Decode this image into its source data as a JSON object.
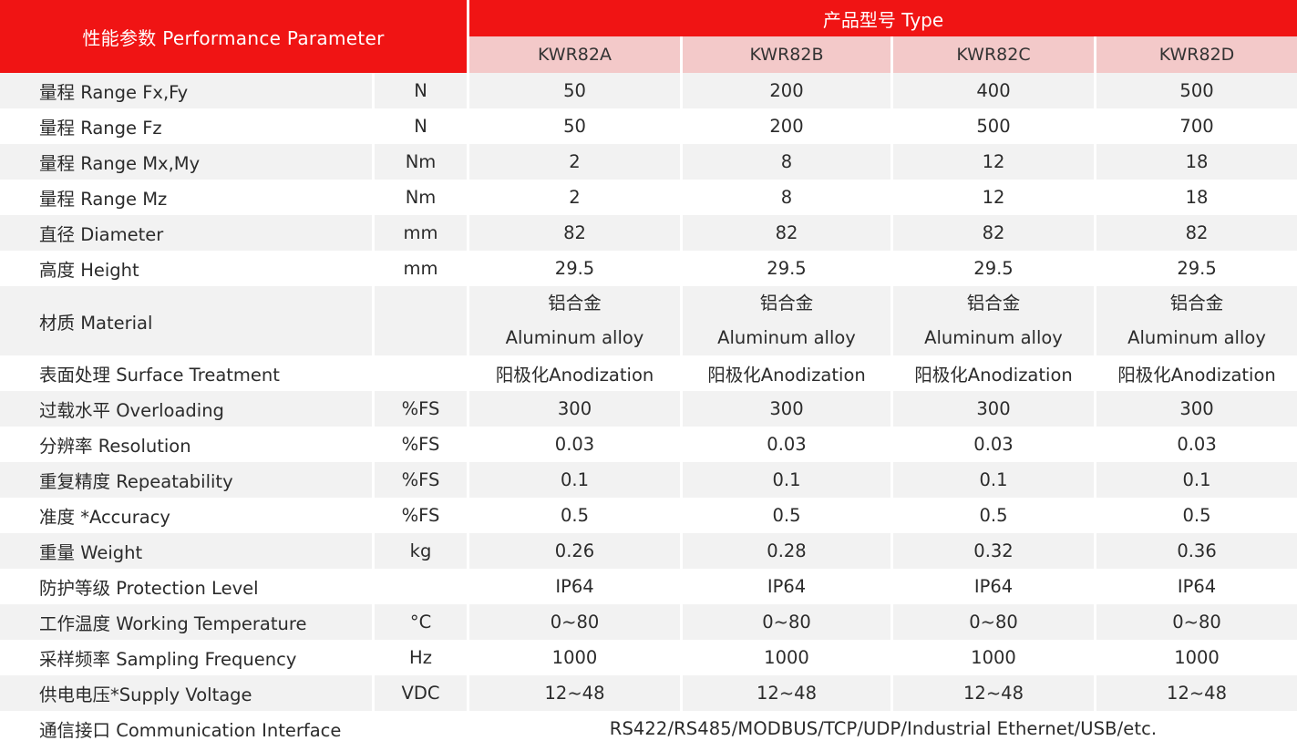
{
  "header": {
    "parameter": "性能参数 Performance   Parameter",
    "type": "产品型号 Type",
    "models": [
      "KWR82A",
      "KWR82B",
      "KWR82C",
      "KWR82D"
    ]
  },
  "rows": [
    {
      "label": "量程 Range     Fx,Fy",
      "unit": "N",
      "values": [
        "50",
        "200",
        "400",
        "500"
      ]
    },
    {
      "label": "量程 Range     Fz",
      "unit": "N",
      "values": [
        "50",
        "200",
        "500",
        "700"
      ]
    },
    {
      "label": "量程 Range     Mx,My",
      "unit": "Nm",
      "values": [
        "2",
        "8",
        "12",
        "18"
      ]
    },
    {
      "label": "量程 Range     Mz",
      "unit": "Nm",
      "values": [
        "2",
        "8",
        "12",
        "18"
      ]
    },
    {
      "label": "直径  Diameter",
      "unit": "mm",
      "values": [
        "82",
        "82",
        "82",
        "82"
      ]
    },
    {
      "label": "高度  Height",
      "unit": "mm",
      "values": [
        "29.5",
        "29.5",
        "29.5",
        "29.5"
      ]
    },
    {
      "label": "材质  Material",
      "unit": "",
      "values": [
        "铝合金",
        "铝合金",
        "铝合金",
        "铝合金"
      ],
      "values2": [
        "Aluminum   alloy",
        "Aluminum   alloy",
        "Aluminum   alloy",
        "Aluminum   alloy"
      ]
    },
    {
      "label": "表面处理  Surface   Treatment",
      "unit": "",
      "values": [
        "阳极化Anodization",
        "阳极化Anodization",
        "阳极化Anodization",
        "阳极化Anodization"
      ]
    },
    {
      "label": "过载水平  Overloading",
      "unit": "%FS",
      "values": [
        "300",
        "300",
        "300",
        "300"
      ]
    },
    {
      "label": "分辨率 Resolution",
      "unit": "%FS",
      "values": [
        "0.03",
        "0.03",
        "0.03",
        "0.03"
      ]
    },
    {
      "label": "重复精度  Repeatability",
      "unit": "%FS",
      "values": [
        "0.1",
        "0.1",
        "0.1",
        "0.1"
      ]
    },
    {
      "label": "准度   *Accuracy",
      "unit": "%FS",
      "values": [
        "0.5",
        "0.5",
        "0.5",
        "0.5"
      ]
    },
    {
      "label": "重量  Weight",
      "unit": "kg",
      "values": [
        "0.26",
        "0.28",
        "0.32",
        "0.36"
      ]
    },
    {
      "label": "防护等级  Protection   Level",
      "unit": "",
      "values": [
        "IP64",
        "IP64",
        "IP64",
        "IP64"
      ]
    },
    {
      "label": "工作温度  Working   Temperature",
      "unit": "°C",
      "values": [
        "0~80",
        "0~80",
        "0~80",
        "0~80"
      ]
    },
    {
      "label": "采样频率  Sampling Frequency",
      "unit": "Hz",
      "values": [
        "1000",
        "1000",
        "1000",
        "1000"
      ]
    },
    {
      "label": "供电电压*Supply Voltage",
      "unit": "VDC",
      "values": [
        "12~48",
        "12~48",
        "12~48",
        "12~48"
      ]
    },
    {
      "label": "通信接口  Communication Interface",
      "unit": "",
      "span_value": "RS422/RS485/MODBUS/TCP/UDP/Industrial Ethernet/USB/etc."
    }
  ],
  "colors": {
    "header_red": "#f01414",
    "model_pink": "#f3c9c9",
    "row_shade": "#f2f2f2"
  }
}
